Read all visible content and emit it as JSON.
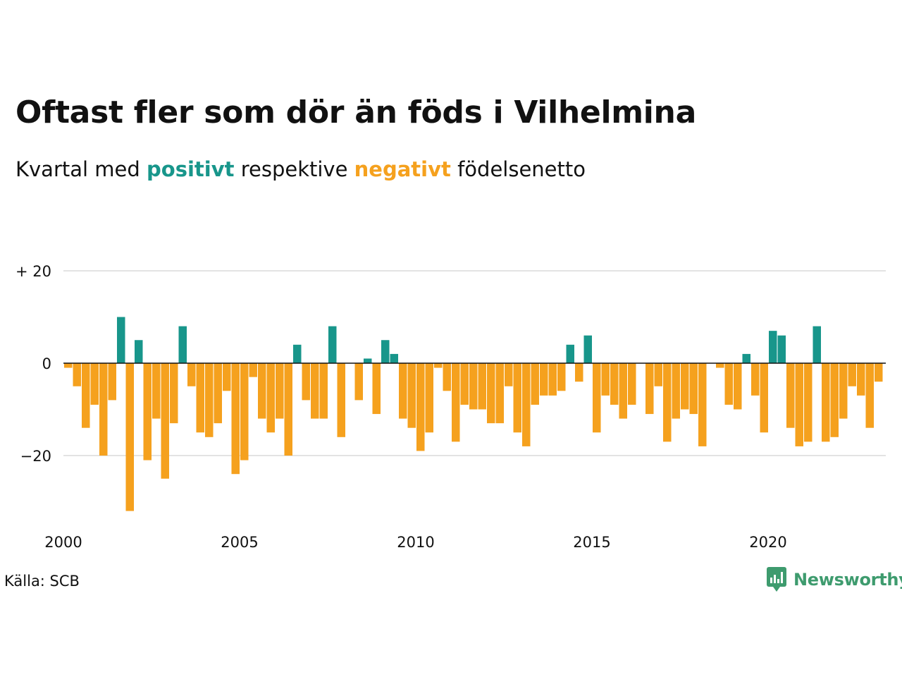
{
  "header": {
    "title": "Oftast fler som dör än föds i Vilhelmina",
    "subtitle_prefix": "Kvartal med ",
    "subtitle_positive": "positivt",
    "subtitle_middle": " respektive ",
    "subtitle_negative": "negativt",
    "subtitle_suffix": " födelsenetto"
  },
  "footer": {
    "source": "Källa: SCB",
    "brand": "Newsworthy",
    "brand_icon": "bar-chart-speech-bubble-icon"
  },
  "colors": {
    "positive": "#18968b",
    "negative": "#f5a11e",
    "grid": "#e3e3e3",
    "zero_line": "#111111",
    "brand": "#3e9b6e"
  },
  "chart_data": {
    "type": "bar",
    "x_start": 2000.0,
    "x_step": 0.25,
    "values": [
      -1,
      -5,
      -14,
      -9,
      -20,
      -8,
      10,
      -32,
      5,
      -21,
      -12,
      -25,
      -13,
      8,
      -5,
      -15,
      -16,
      -13,
      -6,
      -24,
      -21,
      -3,
      -12,
      -15,
      -12,
      -20,
      4,
      -8,
      -12,
      -12,
      8,
      -16,
      0,
      -8,
      1,
      -11,
      5,
      2,
      -12,
      -14,
      -19,
      -15,
      -1,
      -6,
      -17,
      -9,
      -10,
      -10,
      -13,
      -13,
      -5,
      -15,
      -18,
      -9,
      -7,
      -7,
      -6,
      4,
      -4,
      6,
      -15,
      -7,
      -9,
      -12,
      -9,
      0,
      -11,
      -5,
      -17,
      -12,
      -10,
      -11,
      -18,
      0,
      -1,
      -9,
      -10,
      2,
      -7,
      -15,
      7,
      6,
      -14,
      -18,
      -17,
      8,
      -17,
      -16,
      -12,
      -5,
      -7,
      -14,
      -4
    ],
    "x_ticks": [
      2000,
      2005,
      2010,
      2015,
      2020
    ],
    "y_ticks": [
      20,
      0,
      -20
    ],
    "y_tick_labels": [
      "+ 20",
      "0",
      "−20"
    ],
    "ylim": [
      -33,
      21
    ],
    "xlim": [
      2000,
      2023.4
    ],
    "grid": true,
    "legend": "none"
  }
}
